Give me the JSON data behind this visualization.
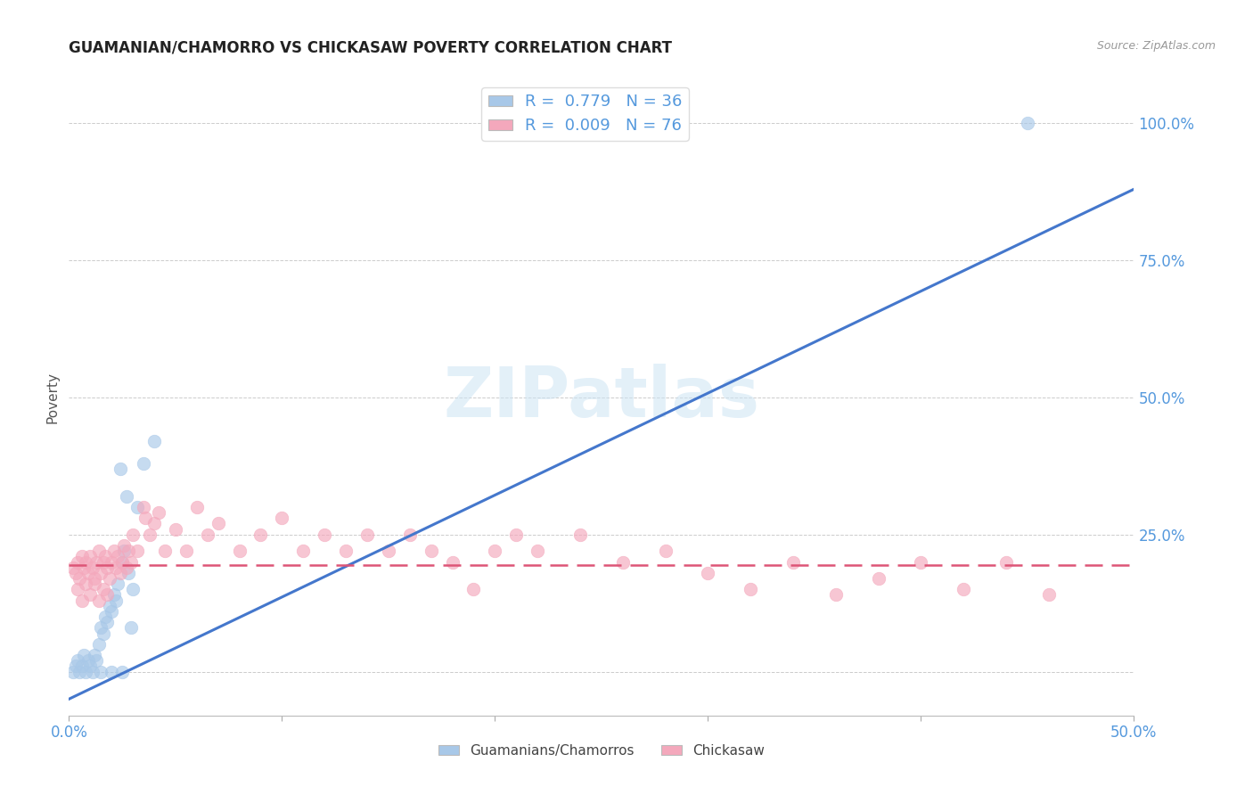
{
  "title": "GUAMANIAN/CHAMORRO VS CHICKASAW POVERTY CORRELATION CHART",
  "source": "Source: ZipAtlas.com",
  "ylabel": "Poverty",
  "blue_R": 0.779,
  "blue_N": 36,
  "pink_R": 0.009,
  "pink_N": 76,
  "blue_color": "#a8c8e8",
  "pink_color": "#f4a8bc",
  "blue_line_color": "#4477cc",
  "pink_line_color": "#dd5577",
  "watermark": "ZIPatlas",
  "legend_label_blue": "Guamanians/Chamorros",
  "legend_label_pink": "Chickasaw",
  "x_lim": [
    0.0,
    0.5
  ],
  "y_lim": [
    -0.08,
    1.08
  ],
  "y_tick_vals": [
    0.0,
    0.25,
    0.5,
    0.75,
    1.0
  ],
  "y_tick_labels": [
    "",
    "25.0%",
    "50.0%",
    "75.0%",
    "100.0%"
  ],
  "blue_line_x": [
    0.0,
    0.5
  ],
  "blue_line_y": [
    -0.05,
    0.88
  ],
  "pink_line_x": [
    0.0,
    0.5
  ],
  "pink_line_y": [
    0.195,
    0.195
  ],
  "blue_scatter": [
    [
      0.002,
      0.0
    ],
    [
      0.003,
      0.01
    ],
    [
      0.004,
      0.02
    ],
    [
      0.005,
      0.0
    ],
    [
      0.006,
      0.01
    ],
    [
      0.007,
      0.03
    ],
    [
      0.008,
      0.0
    ],
    [
      0.009,
      0.02
    ],
    [
      0.01,
      0.01
    ],
    [
      0.011,
      0.0
    ],
    [
      0.012,
      0.03
    ],
    [
      0.013,
      0.02
    ],
    [
      0.014,
      0.05
    ],
    [
      0.015,
      0.08
    ],
    [
      0.016,
      0.07
    ],
    [
      0.017,
      0.1
    ],
    [
      0.018,
      0.09
    ],
    [
      0.019,
      0.12
    ],
    [
      0.02,
      0.11
    ],
    [
      0.021,
      0.14
    ],
    [
      0.022,
      0.13
    ],
    [
      0.023,
      0.16
    ],
    [
      0.024,
      0.37
    ],
    [
      0.025,
      0.2
    ],
    [
      0.026,
      0.22
    ],
    [
      0.027,
      0.32
    ],
    [
      0.028,
      0.18
    ],
    [
      0.029,
      0.08
    ],
    [
      0.03,
      0.15
    ],
    [
      0.032,
      0.3
    ],
    [
      0.035,
      0.38
    ],
    [
      0.04,
      0.42
    ],
    [
      0.015,
      0.0
    ],
    [
      0.02,
      0.0
    ],
    [
      0.025,
      0.0
    ],
    [
      0.45,
      1.0
    ]
  ],
  "pink_scatter": [
    [
      0.002,
      0.19
    ],
    [
      0.003,
      0.18
    ],
    [
      0.004,
      0.2
    ],
    [
      0.005,
      0.17
    ],
    [
      0.006,
      0.21
    ],
    [
      0.007,
      0.19
    ],
    [
      0.008,
      0.2
    ],
    [
      0.009,
      0.18
    ],
    [
      0.01,
      0.21
    ],
    [
      0.011,
      0.19
    ],
    [
      0.012,
      0.17
    ],
    [
      0.013,
      0.2
    ],
    [
      0.014,
      0.22
    ],
    [
      0.015,
      0.18
    ],
    [
      0.016,
      0.2
    ],
    [
      0.017,
      0.21
    ],
    [
      0.018,
      0.19
    ],
    [
      0.019,
      0.17
    ],
    [
      0.02,
      0.2
    ],
    [
      0.021,
      0.22
    ],
    [
      0.022,
      0.19
    ],
    [
      0.023,
      0.21
    ],
    [
      0.024,
      0.18
    ],
    [
      0.025,
      0.2
    ],
    [
      0.026,
      0.23
    ],
    [
      0.027,
      0.19
    ],
    [
      0.028,
      0.22
    ],
    [
      0.029,
      0.2
    ],
    [
      0.03,
      0.25
    ],
    [
      0.032,
      0.22
    ],
    [
      0.035,
      0.3
    ],
    [
      0.036,
      0.28
    ],
    [
      0.038,
      0.25
    ],
    [
      0.04,
      0.27
    ],
    [
      0.042,
      0.29
    ],
    [
      0.045,
      0.22
    ],
    [
      0.05,
      0.26
    ],
    [
      0.055,
      0.22
    ],
    [
      0.06,
      0.3
    ],
    [
      0.065,
      0.25
    ],
    [
      0.07,
      0.27
    ],
    [
      0.08,
      0.22
    ],
    [
      0.09,
      0.25
    ],
    [
      0.1,
      0.28
    ],
    [
      0.11,
      0.22
    ],
    [
      0.12,
      0.25
    ],
    [
      0.13,
      0.22
    ],
    [
      0.14,
      0.25
    ],
    [
      0.15,
      0.22
    ],
    [
      0.16,
      0.25
    ],
    [
      0.17,
      0.22
    ],
    [
      0.18,
      0.2
    ],
    [
      0.19,
      0.15
    ],
    [
      0.2,
      0.22
    ],
    [
      0.21,
      0.25
    ],
    [
      0.22,
      0.22
    ],
    [
      0.24,
      0.25
    ],
    [
      0.26,
      0.2
    ],
    [
      0.28,
      0.22
    ],
    [
      0.3,
      0.18
    ],
    [
      0.32,
      0.15
    ],
    [
      0.34,
      0.2
    ],
    [
      0.36,
      0.14
    ],
    [
      0.38,
      0.17
    ],
    [
      0.4,
      0.2
    ],
    [
      0.42,
      0.15
    ],
    [
      0.44,
      0.2
    ],
    [
      0.46,
      0.14
    ],
    [
      0.004,
      0.15
    ],
    [
      0.006,
      0.13
    ],
    [
      0.008,
      0.16
    ],
    [
      0.01,
      0.14
    ],
    [
      0.012,
      0.16
    ],
    [
      0.014,
      0.13
    ],
    [
      0.016,
      0.15
    ],
    [
      0.018,
      0.14
    ]
  ]
}
